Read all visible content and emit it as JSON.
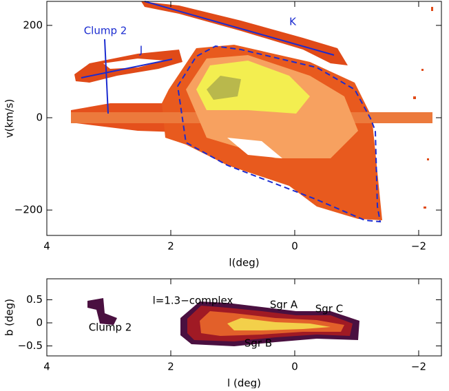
{
  "chart_data": [
    {
      "type": "heatmap",
      "xlabel": "l(deg)",
      "ylabel": "v(km/s)",
      "xlim": [
        4,
        -2.367
      ],
      "ylim": [
        -255,
        252
      ],
      "xticks": [
        4,
        2,
        0,
        {
          "value": -2,
          "label": "−2"
        }
      ],
      "yticks": [
        {
          "value": -200,
          "label": "−200"
        },
        0,
        200
      ],
      "annotations": [
        "Clump 2",
        "J",
        "K"
      ]
    },
    {
      "type": "heatmap",
      "xlabel": "l (deg)",
      "ylabel": "b (deg)",
      "xlim": [
        4,
        -2.367
      ],
      "ylim": [
        -0.716,
        0.955
      ],
      "xticks": [
        4,
        2,
        0,
        {
          "value": -2,
          "label": "−2"
        }
      ],
      "yticks": [
        {
          "value": -0.5,
          "label": "−0.5"
        },
        0,
        0.5
      ],
      "annotations": [
        "l=1.3−complex",
        "Sgr A",
        "Sgr C",
        "Sgr B",
        "Clump 2"
      ]
    }
  ]
}
